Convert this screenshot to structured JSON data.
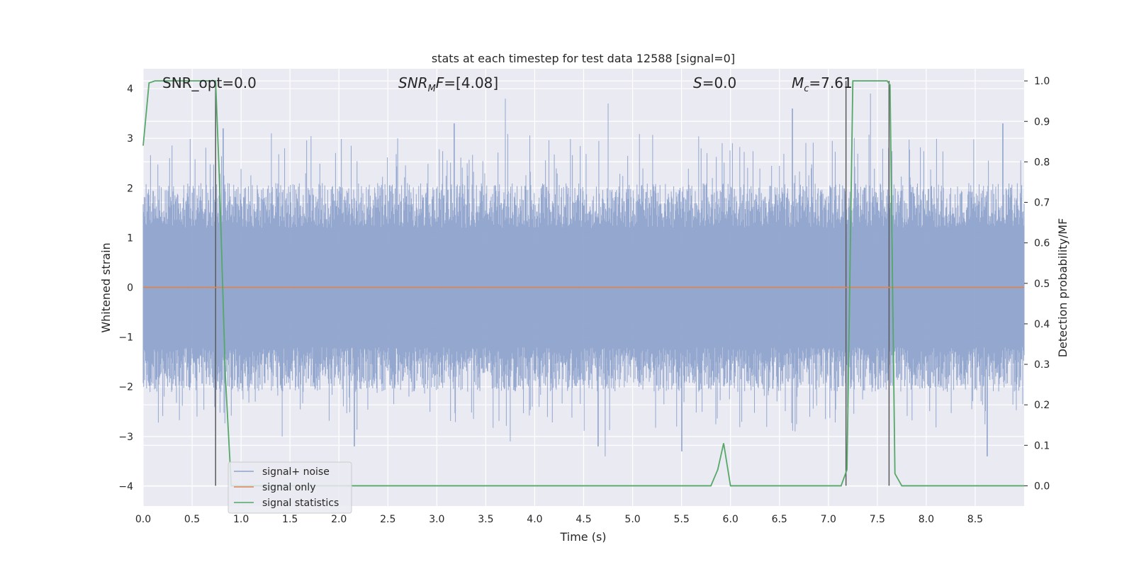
{
  "chart_data": {
    "type": "line",
    "title": "stats at each timestep for test data 12588 [signal=0]",
    "xlabel": "Time (s)",
    "ylabel_left": "Whitened strain",
    "ylabel_right": "Detection probability/MF",
    "xlim": [
      0.0,
      9.0
    ],
    "ylim_left": [
      -4.4,
      4.4
    ],
    "ylim_right": [
      -0.05,
      1.03
    ],
    "x_ticks": [
      0.0,
      0.5,
      1.0,
      1.5,
      2.0,
      2.5,
      3.0,
      3.5,
      4.0,
      4.5,
      5.0,
      5.5,
      6.0,
      6.5,
      7.0,
      7.5,
      8.0,
      8.5
    ],
    "x_tick_labels": [
      "0.0",
      "0.5",
      "1.0",
      "1.5",
      "2.0",
      "2.5",
      "3.0",
      "3.5",
      "4.0",
      "4.5",
      "5.0",
      "5.5",
      "6.0",
      "6.5",
      "7.0",
      "7.5",
      "8.0",
      "8.5"
    ],
    "y_left_ticks": [
      -4,
      -3,
      -2,
      -1,
      0,
      1,
      2,
      3,
      4
    ],
    "y_left_tick_labels": [
      "−4",
      "−3",
      "−2",
      "−1",
      "0",
      "1",
      "2",
      "3",
      "4"
    ],
    "y_right_ticks": [
      0.0,
      0.1,
      0.2,
      0.3,
      0.4,
      0.5,
      0.6,
      0.7,
      0.8,
      0.9,
      1.0
    ],
    "y_right_tick_labels": [
      "0.0",
      "0.1",
      "0.2",
      "0.3",
      "0.4",
      "0.5",
      "0.6",
      "0.7",
      "0.8",
      "0.9",
      "1.0"
    ],
    "grid": true,
    "legend_position": "lower-left",
    "annotations": [
      {
        "text": "SNR_opt=0.0",
        "x": 0.2
      },
      {
        "text": "SNR_MF=[4.08]",
        "x": 2.6,
        "base": "SNR",
        "sub": "M",
        "rest": "F=[4.08]"
      },
      {
        "text": "S=0.0",
        "x": 5.6,
        "base": "S",
        "rest": "=0.0"
      },
      {
        "text": "M_c=7.61",
        "x": 6.6,
        "base": "M",
        "sub": "c",
        "rest": "=7.61"
      }
    ],
    "vertical_markers": [
      0.74,
      7.18,
      7.62
    ],
    "series": [
      {
        "name": "signal+ noise",
        "color": "#8fa3cc",
        "kind": "noise",
        "approx_envelope": {
          "min": -3.4,
          "max": 3.9
        },
        "notable_peaks": [
          {
            "x": 0.82,
            "y": 3.2
          },
          {
            "x": 1.31,
            "y": 3.1
          },
          {
            "x": 2.6,
            "y": 3.0
          },
          {
            "x": 3.18,
            "y": 3.3
          },
          {
            "x": 3.7,
            "y": 3.8
          },
          {
            "x": 4.75,
            "y": 3.7
          },
          {
            "x": 6.63,
            "y": 3.6
          },
          {
            "x": 7.43,
            "y": 3.9
          },
          {
            "x": 8.78,
            "y": 3.3
          }
        ],
        "notable_troughs": [
          {
            "x": 0.55,
            "y": -2.6
          },
          {
            "x": 1.42,
            "y": -3.0
          },
          {
            "x": 2.16,
            "y": -3.2
          },
          {
            "x": 3.75,
            "y": -3.1
          },
          {
            "x": 4.65,
            "y": -3.2
          },
          {
            "x": 4.72,
            "y": -3.4
          },
          {
            "x": 5.5,
            "y": -3.3
          },
          {
            "x": 8.62,
            "y": -3.4
          }
        ]
      },
      {
        "name": "signal only",
        "color": "#dd8452",
        "x": [
          0.0,
          9.0
        ],
        "y": [
          0.0,
          0.0
        ]
      },
      {
        "name": "signal statistics",
        "color": "#55a868",
        "axis": "right",
        "x": [
          0.0,
          0.06,
          0.12,
          0.3,
          0.6,
          0.74,
          0.78,
          0.84,
          0.9,
          2.0,
          4.0,
          5.8,
          5.87,
          5.93,
          6.0,
          6.4,
          7.0,
          7.13,
          7.19,
          7.25,
          7.4,
          7.6,
          7.63,
          7.68,
          7.75,
          9.0
        ],
        "y": [
          0.84,
          0.995,
          1.0,
          1.0,
          1.0,
          1.0,
          0.75,
          0.27,
          0.0,
          0.0,
          0.0,
          0.0,
          0.04,
          0.105,
          0.0,
          0.0,
          0.0,
          0.0,
          0.04,
          1.0,
          1.0,
          1.0,
          0.99,
          0.03,
          0.0,
          0.0
        ]
      }
    ]
  }
}
